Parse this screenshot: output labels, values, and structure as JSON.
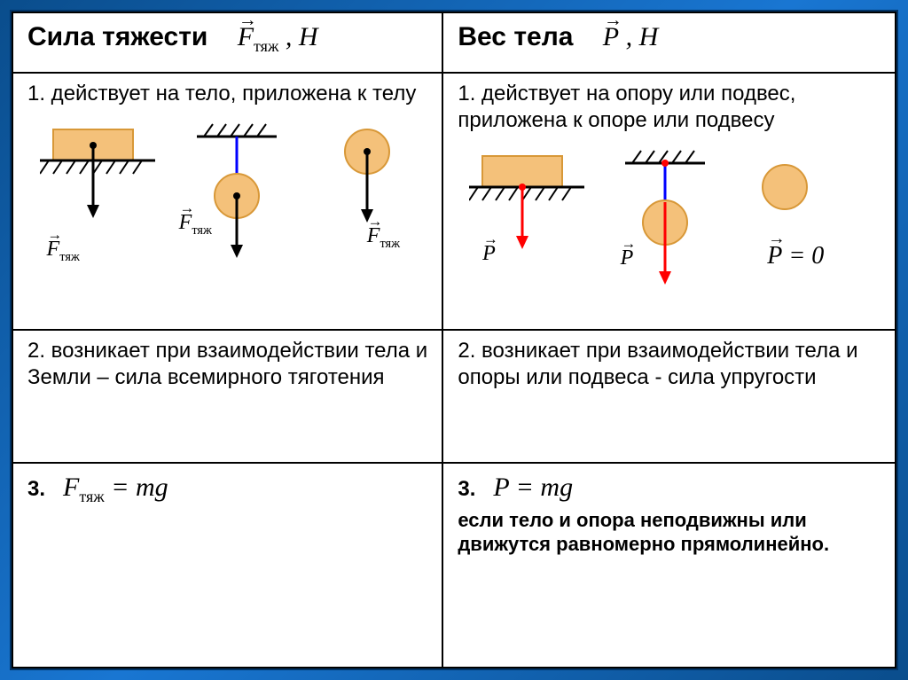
{
  "colors": {
    "body_fill": "#f4c17a",
    "body_stroke": "#d89838",
    "arrow_black": "#000000",
    "arrow_red": "#ff0000",
    "arrow_blue": "#0000ff",
    "hatch": "#000000"
  },
  "header": {
    "left_title": "Сила тяжести",
    "left_symbol_html": "<span class='vec'>F</span><span class='sub'>тяж</span> , <span style='font-style:italic'>H</span>",
    "right_title": "Вес тела",
    "right_symbol_html": "<span class='vec'>P</span> , <span style='font-style:italic'>H</span>"
  },
  "row1": {
    "left": "1. действует на тело, приложена к телу",
    "right": "1. действует на опору или подвес, приложена к опоре или подвесу",
    "labels": {
      "F": "F",
      "Fsub": "тяж",
      "P": "P",
      "Peq0_html": "<span class='vec'>P</span> = 0"
    }
  },
  "row2": {
    "left": "2. возникает при взаимодействии тела и Земли – сила всемирного тяготения",
    "right": "2. возникает при взаимодействии тела и опоры или подвеса - сила упругости"
  },
  "row3": {
    "left_prefix": "3.",
    "left_formula_html": "<span style='font-style:italic'>F</span><span class='sub'>тяж</span> = <span style='font-style:italic'>mg</span>",
    "right_prefix": "3.",
    "right_formula_html": "<span style='font-style:italic'>P</span> = <span style='font-style:italic'>mg</span>",
    "right_note": "если тело и опора неподвижны или движутся равномерно прямолинейно."
  }
}
